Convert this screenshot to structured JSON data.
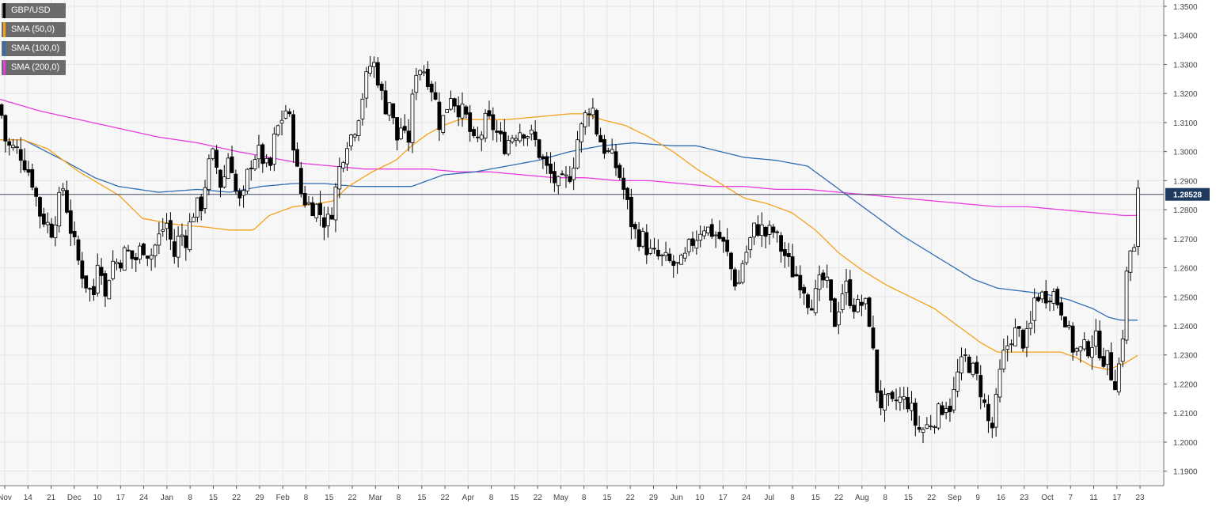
{
  "chart_data": {
    "type": "candlestick",
    "symbol": "GBP/USD",
    "last_price_label": "1.28528",
    "ylim": [
      1.185,
      1.35
    ],
    "y_ticks": [
      "1.1900",
      "1.2000",
      "1.2100",
      "1.2200",
      "1.2300",
      "1.2400",
      "1.2500",
      "1.2600",
      "1.2700",
      "1.2800",
      "1.2900",
      "1.3000",
      "1.3100",
      "1.3200",
      "1.3300",
      "1.3400",
      "1.3500"
    ],
    "x_ticks": [
      "Nov",
      "14",
      "21",
      "Dec",
      "10",
      "17",
      "24",
      "Jan",
      "8",
      "15",
      "22",
      "29",
      "Feb",
      "8",
      "15",
      "22",
      "Mar",
      "8",
      "15",
      "22",
      "Apr",
      "8",
      "15",
      "22",
      "May",
      "8",
      "15",
      "22",
      "29",
      "Jun",
      "10",
      "17",
      "24",
      "Jul",
      "8",
      "15",
      "22",
      "Aug",
      "8",
      "15",
      "22",
      "Sep",
      "9",
      "16",
      "23",
      "Oct",
      "7",
      "11",
      "17",
      "23"
    ],
    "grid": true,
    "legend_position": "top-left",
    "colors": {
      "candle_up": "#ffffff",
      "candle_down": "#000000",
      "candle_border": "#000000",
      "sma50": "#f5a11c",
      "sma100": "#2f6db5",
      "sma200": "#e83ce0",
      "price_line": "#3b4a5a",
      "grid": "#e6e6e6",
      "price_tag": "#1e3a5f"
    },
    "legend": [
      {
        "label": "GBP/USD",
        "color": "#000000"
      },
      {
        "label": "SMA (50,0)",
        "color": "#f5a11c"
      },
      {
        "label": "SMA (100,0)",
        "color": "#2f6db5"
      },
      {
        "label": "SMA (200,0)",
        "color": "#e83ce0"
      }
    ],
    "price_anchors": [
      [
        0,
        1.316
      ],
      [
        8,
        1.302
      ],
      [
        25,
        1.3
      ],
      [
        40,
        1.291
      ],
      [
        50,
        1.279
      ],
      [
        65,
        1.273
      ],
      [
        80,
        1.288
      ],
      [
        88,
        1.275
      ],
      [
        98,
        1.263
      ],
      [
        108,
        1.255
      ],
      [
        118,
        1.25
      ],
      [
        125,
        1.268
      ],
      [
        133,
        1.249
      ],
      [
        140,
        1.262
      ],
      [
        150,
        1.262
      ],
      [
        160,
        1.266
      ],
      [
        170,
        1.262
      ],
      [
        180,
        1.268
      ],
      [
        190,
        1.264
      ],
      [
        200,
        1.27
      ],
      [
        210,
        1.276
      ],
      [
        220,
        1.264
      ],
      [
        227,
        1.272
      ],
      [
        235,
        1.27
      ],
      [
        245,
        1.28
      ],
      [
        255,
        1.282
      ],
      [
        262,
        1.294
      ],
      [
        270,
        1.299
      ],
      [
        280,
        1.287
      ],
      [
        290,
        1.301
      ],
      [
        300,
        1.282
      ],
      [
        307,
        1.283
      ],
      [
        315,
        1.296
      ],
      [
        325,
        1.3
      ],
      [
        333,
        1.297
      ],
      [
        340,
        1.292
      ],
      [
        347,
        1.305
      ],
      [
        355,
        1.311
      ],
      [
        362,
        1.315
      ],
      [
        370,
        1.305
      ],
      [
        378,
        1.287
      ],
      [
        388,
        1.282
      ],
      [
        400,
        1.281
      ],
      [
        410,
        1.276
      ],
      [
        416,
        1.276
      ],
      [
        422,
        1.284
      ],
      [
        430,
        1.296
      ],
      [
        438,
        1.304
      ],
      [
        445,
        1.306
      ],
      [
        452,
        1.312
      ],
      [
        460,
        1.322
      ],
      [
        470,
        1.332
      ],
      [
        478,
        1.325
      ],
      [
        485,
        1.315
      ],
      [
        493,
        1.318
      ],
      [
        500,
        1.303
      ],
      [
        508,
        1.31
      ],
      [
        514,
        1.299
      ],
      [
        520,
        1.315
      ],
      [
        526,
        1.329
      ],
      [
        534,
        1.329
      ],
      [
        542,
        1.325
      ],
      [
        548,
        1.32
      ],
      [
        555,
        1.31
      ],
      [
        562,
        1.312
      ],
      [
        568,
        1.321
      ],
      [
        575,
        1.317
      ],
      [
        582,
        1.314
      ],
      [
        590,
        1.311
      ],
      [
        598,
        1.302
      ],
      [
        605,
        1.304
      ],
      [
        613,
        1.31
      ],
      [
        620,
        1.31
      ],
      [
        628,
        1.306
      ],
      [
        636,
        1.302
      ],
      [
        645,
        1.305
      ],
      [
        652,
        1.307
      ],
      [
        660,
        1.308
      ],
      [
        668,
        1.306
      ],
      [
        675,
        1.304
      ],
      [
        682,
        1.299
      ],
      [
        690,
        1.294
      ],
      [
        698,
        1.291
      ],
      [
        705,
        1.288
      ],
      [
        712,
        1.289
      ],
      [
        718,
        1.291
      ],
      [
        724,
        1.296
      ],
      [
        730,
        1.305
      ],
      [
        736,
        1.309
      ],
      [
        742,
        1.315
      ],
      [
        748,
        1.316
      ],
      [
        753,
        1.308
      ],
      [
        760,
        1.303
      ],
      [
        766,
        1.3
      ],
      [
        772,
        1.298
      ],
      [
        778,
        1.295
      ],
      [
        785,
        1.29
      ],
      [
        792,
        1.282
      ],
      [
        798,
        1.275
      ],
      [
        804,
        1.271
      ],
      [
        812,
        1.27
      ],
      [
        820,
        1.265
      ],
      [
        828,
        1.264
      ],
      [
        836,
        1.263
      ],
      [
        843,
        1.262
      ],
      [
        850,
        1.261
      ],
      [
        857,
        1.26
      ],
      [
        864,
        1.262
      ],
      [
        872,
        1.268
      ],
      [
        880,
        1.271
      ],
      [
        888,
        1.275
      ],
      [
        895,
        1.273
      ],
      [
        902,
        1.272
      ],
      [
        910,
        1.27
      ],
      [
        918,
        1.265
      ],
      [
        925,
        1.258
      ],
      [
        932,
        1.253
      ],
      [
        938,
        1.262
      ],
      [
        945,
        1.267
      ],
      [
        952,
        1.273
      ],
      [
        960,
        1.274
      ],
      [
        968,
        1.271
      ],
      [
        976,
        1.273
      ],
      [
        984,
        1.268
      ],
      [
        992,
        1.264
      ],
      [
        1000,
        1.259
      ],
      [
        1008,
        1.257
      ],
      [
        1015,
        1.254
      ],
      [
        1022,
        1.248
      ],
      [
        1030,
        1.25
      ],
      [
        1036,
        1.255
      ],
      [
        1043,
        1.256
      ],
      [
        1049,
        1.247
      ],
      [
        1055,
        1.241
      ],
      [
        1062,
        1.251
      ],
      [
        1068,
        1.254
      ],
      [
        1075,
        1.249
      ],
      [
        1082,
        1.246
      ],
      [
        1090,
        1.248
      ],
      [
        1097,
        1.245
      ],
      [
        1103,
        1.23
      ],
      [
        1108,
        1.218
      ],
      [
        1114,
        1.212
      ],
      [
        1120,
        1.214
      ],
      [
        1127,
        1.212
      ],
      [
        1134,
        1.215
      ],
      [
        1141,
        1.214
      ],
      [
        1148,
        1.214
      ],
      [
        1155,
        1.207
      ],
      [
        1162,
        1.204
      ],
      [
        1170,
        1.205
      ],
      [
        1178,
        1.208
      ],
      [
        1186,
        1.21
      ],
      [
        1194,
        1.214
      ],
      [
        1202,
        1.212
      ],
      [
        1208,
        1.222
      ],
      [
        1214,
        1.226
      ],
      [
        1220,
        1.229
      ],
      [
        1226,
        1.226
      ],
      [
        1232,
        1.223
      ],
      [
        1238,
        1.219
      ],
      [
        1244,
        1.212
      ],
      [
        1250,
        1.205
      ],
      [
        1255,
        1.205
      ],
      [
        1260,
        1.218
      ],
      [
        1266,
        1.228
      ],
      [
        1272,
        1.233
      ],
      [
        1278,
        1.237
      ],
      [
        1285,
        1.238
      ],
      [
        1292,
        1.235
      ],
      [
        1300,
        1.236
      ],
      [
        1306,
        1.249
      ],
      [
        1312,
        1.251
      ],
      [
        1318,
        1.25
      ],
      [
        1325,
        1.252
      ],
      [
        1332,
        1.251
      ],
      [
        1338,
        1.247
      ],
      [
        1344,
        1.245
      ],
      [
        1350,
        1.237
      ],
      [
        1356,
        1.232
      ],
      [
        1363,
        1.231
      ],
      [
        1370,
        1.232
      ],
      [
        1376,
        1.233
      ],
      [
        1382,
        1.236
      ],
      [
        1388,
        1.233
      ],
      [
        1394,
        1.229
      ],
      [
        1400,
        1.228
      ],
      [
        1405,
        1.222
      ],
      [
        1410,
        1.221
      ],
      [
        1415,
        1.229
      ],
      [
        1418,
        1.237
      ],
      [
        1421,
        1.247
      ],
      [
        1424,
        1.262
      ],
      [
        1428,
        1.266
      ],
      [
        1432,
        1.261
      ],
      [
        1435,
        1.279
      ],
      [
        1438,
        1.286
      ]
    ],
    "sma50": [
      [
        0,
        1.304
      ],
      [
        30,
        1.304
      ],
      [
        60,
        1.301
      ],
      [
        100,
        1.293
      ],
      [
        150,
        1.285
      ],
      [
        180,
        1.277
      ],
      [
        220,
        1.275
      ],
      [
        260,
        1.274
      ],
      [
        290,
        1.273
      ],
      [
        320,
        1.273
      ],
      [
        340,
        1.278
      ],
      [
        370,
        1.281
      ],
      [
        400,
        1.282
      ],
      [
        420,
        1.283
      ],
      [
        440,
        1.288
      ],
      [
        470,
        1.293
      ],
      [
        500,
        1.297
      ],
      [
        520,
        1.302
      ],
      [
        540,
        1.306
      ],
      [
        560,
        1.309
      ],
      [
        580,
        1.311
      ],
      [
        600,
        1.311
      ],
      [
        640,
        1.311
      ],
      [
        680,
        1.312
      ],
      [
        720,
        1.313
      ],
      [
        740,
        1.313
      ],
      [
        760,
        1.311
      ],
      [
        790,
        1.309
      ],
      [
        820,
        1.305
      ],
      [
        850,
        1.3
      ],
      [
        880,
        1.294
      ],
      [
        910,
        1.289
      ],
      [
        940,
        1.284
      ],
      [
        970,
        1.282
      ],
      [
        1000,
        1.279
      ],
      [
        1030,
        1.273
      ],
      [
        1060,
        1.265
      ],
      [
        1090,
        1.259
      ],
      [
        1120,
        1.254
      ],
      [
        1150,
        1.25
      ],
      [
        1180,
        1.246
      ],
      [
        1210,
        1.24
      ],
      [
        1240,
        1.234
      ],
      [
        1260,
        1.231
      ],
      [
        1290,
        1.231
      ],
      [
        1320,
        1.231
      ],
      [
        1340,
        1.231
      ],
      [
        1360,
        1.229
      ],
      [
        1380,
        1.226
      ],
      [
        1400,
        1.225
      ],
      [
        1420,
        1.227
      ],
      [
        1438,
        1.23
      ]
    ],
    "sma100": [
      [
        0,
        1.304
      ],
      [
        30,
        1.304
      ],
      [
        80,
        1.297
      ],
      [
        120,
        1.291
      ],
      [
        150,
        1.288
      ],
      [
        200,
        1.286
      ],
      [
        250,
        1.287
      ],
      [
        290,
        1.286
      ],
      [
        330,
        1.288
      ],
      [
        370,
        1.289
      ],
      [
        410,
        1.289
      ],
      [
        450,
        1.288
      ],
      [
        490,
        1.288
      ],
      [
        520,
        1.288
      ],
      [
        560,
        1.292
      ],
      [
        600,
        1.293
      ],
      [
        640,
        1.295
      ],
      [
        680,
        1.297
      ],
      [
        720,
        1.3
      ],
      [
        760,
        1.302
      ],
      [
        800,
        1.303
      ],
      [
        850,
        1.302
      ],
      [
        880,
        1.302
      ],
      [
        910,
        1.3
      ],
      [
        940,
        1.298
      ],
      [
        980,
        1.297
      ],
      [
        1020,
        1.295
      ],
      [
        1050,
        1.289
      ],
      [
        1080,
        1.283
      ],
      [
        1110,
        1.277
      ],
      [
        1140,
        1.271
      ],
      [
        1170,
        1.266
      ],
      [
        1200,
        1.261
      ],
      [
        1230,
        1.256
      ],
      [
        1260,
        1.253
      ],
      [
        1290,
        1.252
      ],
      [
        1320,
        1.251
      ],
      [
        1350,
        1.249
      ],
      [
        1380,
        1.246
      ],
      [
        1400,
        1.243
      ],
      [
        1415,
        1.242
      ],
      [
        1438,
        1.242
      ]
    ],
    "sma200": [
      [
        0,
        1.318
      ],
      [
        50,
        1.314
      ],
      [
        100,
        1.311
      ],
      [
        150,
        1.308
      ],
      [
        200,
        1.305
      ],
      [
        250,
        1.303
      ],
      [
        300,
        1.3
      ],
      [
        340,
        1.298
      ],
      [
        380,
        1.296
      ],
      [
        420,
        1.295
      ],
      [
        460,
        1.294
      ],
      [
        500,
        1.294
      ],
      [
        540,
        1.294
      ],
      [
        580,
        1.293
      ],
      [
        620,
        1.293
      ],
      [
        660,
        1.292
      ],
      [
        700,
        1.291
      ],
      [
        740,
        1.291
      ],
      [
        780,
        1.29
      ],
      [
        820,
        1.29
      ],
      [
        860,
        1.289
      ],
      [
        900,
        1.288
      ],
      [
        940,
        1.288
      ],
      [
        980,
        1.287
      ],
      [
        1020,
        1.287
      ],
      [
        1060,
        1.286
      ],
      [
        1100,
        1.285
      ],
      [
        1140,
        1.284
      ],
      [
        1180,
        1.283
      ],
      [
        1220,
        1.282
      ],
      [
        1260,
        1.281
      ],
      [
        1300,
        1.281
      ],
      [
        1340,
        1.28
      ],
      [
        1380,
        1.279
      ],
      [
        1420,
        1.278
      ],
      [
        1438,
        1.278
      ]
    ]
  }
}
